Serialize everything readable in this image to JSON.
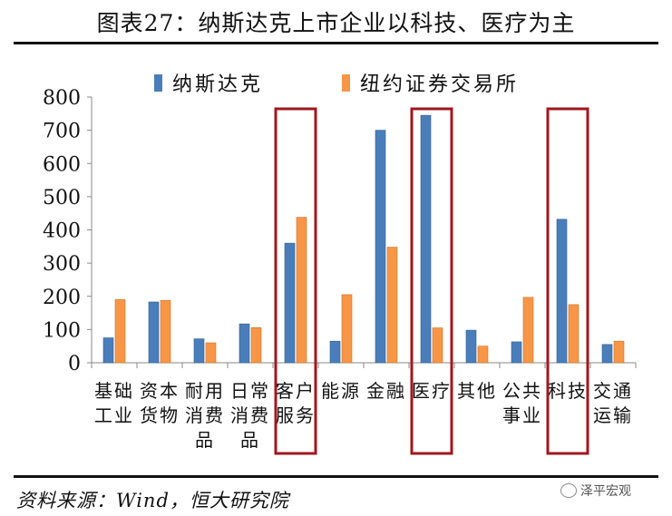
{
  "title": "图表27：纳斯达克上市企业以科技、医疗为主",
  "source": "资料来源：Wind，恒大研究院",
  "watermark": "泽平宏观",
  "chart_data": {
    "type": "bar",
    "categories": [
      [
        "基础",
        "工业"
      ],
      [
        "资本",
        "货物"
      ],
      [
        "耐用",
        "消费",
        "品"
      ],
      [
        "日常",
        "消费",
        "品"
      ],
      [
        "客户",
        "服务"
      ],
      [
        "能源"
      ],
      [
        "金融"
      ],
      [
        "医疗"
      ],
      [
        "其他"
      ],
      [
        "公共",
        "事业"
      ],
      [
        "科技"
      ],
      [
        "交通",
        "运输"
      ]
    ],
    "series": [
      {
        "name": "纳斯达克",
        "color": "#4A7EBB",
        "values": [
          75,
          183,
          72,
          117,
          360,
          65,
          700,
          745,
          98,
          63,
          432,
          55
        ]
      },
      {
        "name": "纽约证券交易所",
        "color": "#F79646",
        "values": [
          190,
          188,
          60,
          106,
          438,
          205,
          348,
          105,
          50,
          197,
          175,
          65
        ]
      }
    ],
    "ylim": [
      0,
      800
    ],
    "yticks": [
      0,
      100,
      200,
      300,
      400,
      500,
      600,
      700,
      800
    ],
    "highlighted_categories": [
      4,
      7,
      10
    ],
    "highlight_color": "#A0171E",
    "legend_position": "top-right"
  }
}
